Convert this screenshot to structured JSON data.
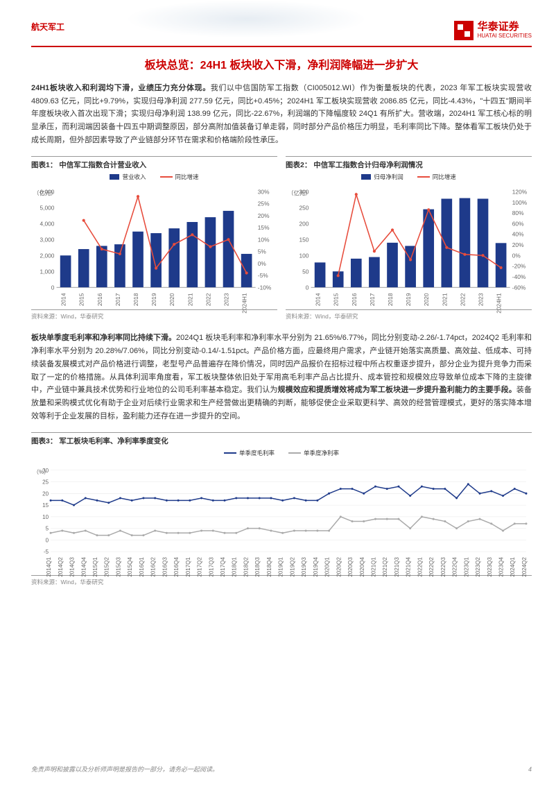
{
  "header": {
    "category": "航天军工",
    "logo_cn": "华泰证券",
    "logo_en": "HUATAI SECURITIES"
  },
  "title": "板块总览：24H1 板块收入下滑，净利润降幅进一步扩大",
  "para1_bold": "24H1板块收入和利润均下滑，业绩压力充分体现。",
  "para1": "我们以中信国防军工指数（CI005012.WI）作为衡量板块的代表，2023 年军工板块实现营收 4809.63 亿元，同比+9.79%，实现归母净利润 277.59 亿元，同比+0.45%；2024H1 军工板块实现营收 2086.85 亿元，同比-4.43%，\"十四五\"期间半年度板块收入首次出现下滑；实现归母净利润 138.99 亿元，同比-22.67%，利润端的下降幅度较 24Q1 有所扩大。营收端，2024H1 军工核心标的明显承压，而利润端因装备十四五中期调整原因，部分高附加值装备订单走弱，同时部分产品价格压力明显，毛利率同比下降。整体看军工板块仍处于成长周期，但外部因素导致了产业链部分环节在需求和价格端阶段性承压。",
  "chart1": {
    "title": "图表1：  中信军工指数合计营业收入",
    "source": "资料来源：Wind，华泰研究",
    "type": "bar+line",
    "y1_label": "（亿元）",
    "legend_bar": "营业收入",
    "legend_line": "同比增速",
    "y1_range": [
      0,
      6000
    ],
    "y1_step": 1000,
    "y2_range": [
      -10,
      30
    ],
    "y2_step": 5,
    "categories": [
      "2014",
      "2015",
      "2016",
      "2017",
      "2018",
      "2019",
      "2020",
      "2021",
      "2022",
      "2023",
      "2024H1"
    ],
    "bar_values": [
      2000,
      2400,
      2600,
      2700,
      3500,
      3400,
      3700,
      4100,
      4400,
      4800,
      2100
    ],
    "line_values": [
      null,
      18,
      6,
      4,
      28,
      -2,
      8,
      12,
      7,
      10,
      -4
    ],
    "bar_color": "#1e3a8a",
    "line_color": "#e74c3c",
    "bg": "#ffffff",
    "grid": "#e8e8e8"
  },
  "chart2": {
    "title": "图表2：  中信军工指数合计归母净利润情况",
    "source": "资料来源：Wind，华泰研究",
    "type": "bar+line",
    "y1_label": "（亿元）",
    "legend_bar": "归母净利润",
    "legend_line": "同比增速",
    "y1_range": [
      0,
      300
    ],
    "y1_step": 50,
    "y2_range": [
      -60,
      120
    ],
    "y2_step": 20,
    "categories": [
      "2014",
      "2015",
      "2016",
      "2017",
      "2018",
      "2019",
      "2020",
      "2021",
      "2022",
      "2023",
      "2024H1"
    ],
    "bar_values": [
      78,
      50,
      90,
      95,
      140,
      130,
      245,
      278,
      280,
      278,
      139
    ],
    "line_values": [
      null,
      -38,
      115,
      8,
      48,
      -8,
      86,
      15,
      2,
      0,
      -23
    ],
    "bar_color": "#1e3a8a",
    "line_color": "#e74c3c",
    "bg": "#ffffff",
    "grid": "#e8e8e8"
  },
  "para2_bold1": "板块单季度毛利率和净利率同比持续下滑。",
  "para2_a": "2024Q1 板块毛利率和净利率水平分别为 21.65%/6.77%，同比分别变动-2.26/-1.74pct，2024Q2 毛利率和净利率水平分别为 20.28%/7.06%，同比分别变动-0.14/-1.51pct。产品价格方面，应最终用户需求，产业链开始落实高质量、高效益、低成本、可持续装备发展模式对产品价格进行调整，老型号产品普遍存在降价情况，同时因产品报价在招标过程中所占权重逐步提升，部分企业为提升竞争力而采取了一定的价格措施。从具体利润率角度看，军工板块整体依旧处于军用高毛利率产品占比提升、成本管控和规模效应导致单位成本下降的主旋律中，产业链中兼具技术优势和行业地位的公司毛利率基本稳定。我们认为",
  "para2_bold2": "规模效应和提质增效将成为军工板块进一步提升盈利能力的主要手段。",
  "para2_b": "装备放量和采购模式优化有助于企业对后续行业需求和生产经营做出更精确的判断，能够促使企业采取更科学、高效的经营管理模式，更好的落实降本增效等利于企业发展的目标，盈利能力还存在进一步提升的空间。",
  "chart3": {
    "title": "图表3：  军工板块毛利率、净利率季度变化",
    "source": "资料来源：Wind，华泰研究",
    "type": "line2",
    "y_label": "（%）",
    "legend1": "单季度毛利率",
    "legend2": "单季度净利率",
    "y_range": [
      -5,
      30
    ],
    "y_step": 5,
    "categories": [
      "2014Q1",
      "2014Q2",
      "2014Q3",
      "2014Q4",
      "2015Q1",
      "2015Q2",
      "2015Q3",
      "2015Q4",
      "2016Q1",
      "2016Q2",
      "2016Q3",
      "2016Q4",
      "2017Q1",
      "2017Q2",
      "2017Q3",
      "2017Q4",
      "2018Q1",
      "2018Q2",
      "2018Q3",
      "2018Q4",
      "2019Q1",
      "2019Q2",
      "2019Q3",
      "2019Q4",
      "2020Q1",
      "2020Q2",
      "2020Q3",
      "2020Q4",
      "2021Q1",
      "2021Q2",
      "2021Q3",
      "2021Q4",
      "2022Q1",
      "2022Q2",
      "2022Q3",
      "2022Q4",
      "2023Q1",
      "2023Q2",
      "2023Q3",
      "2023Q4",
      "2024Q1",
      "2024Q2"
    ],
    "line1_values": [
      17,
      17,
      15,
      18,
      17,
      16,
      18,
      17,
      18,
      18,
      17,
      17,
      17,
      18,
      17,
      17,
      18,
      18,
      18,
      18,
      17,
      18,
      17,
      17,
      20,
      22,
      22,
      20,
      23,
      22,
      23,
      19,
      23,
      22,
      22,
      18,
      24,
      20,
      21,
      19,
      22,
      20
    ],
    "line2_values": [
      3,
      4,
      3,
      4,
      2,
      2,
      4,
      2,
      2,
      4,
      3,
      3,
      3,
      4,
      4,
      3,
      3,
      5,
      5,
      4,
      3,
      4,
      4,
      4,
      4,
      10,
      8,
      8,
      9,
      9,
      9,
      5,
      10,
      9,
      8,
      5,
      8,
      9,
      7,
      4,
      7,
      7
    ],
    "line1_color": "#1e3a8a",
    "line2_color": "#aaaaaa",
    "bg": "#ffffff",
    "grid": "#e8e8e8"
  },
  "footer": {
    "disclaimer": "免责声明和披露以及分析师声明是报告的一部分，请务必一起阅读。",
    "page": "4"
  }
}
